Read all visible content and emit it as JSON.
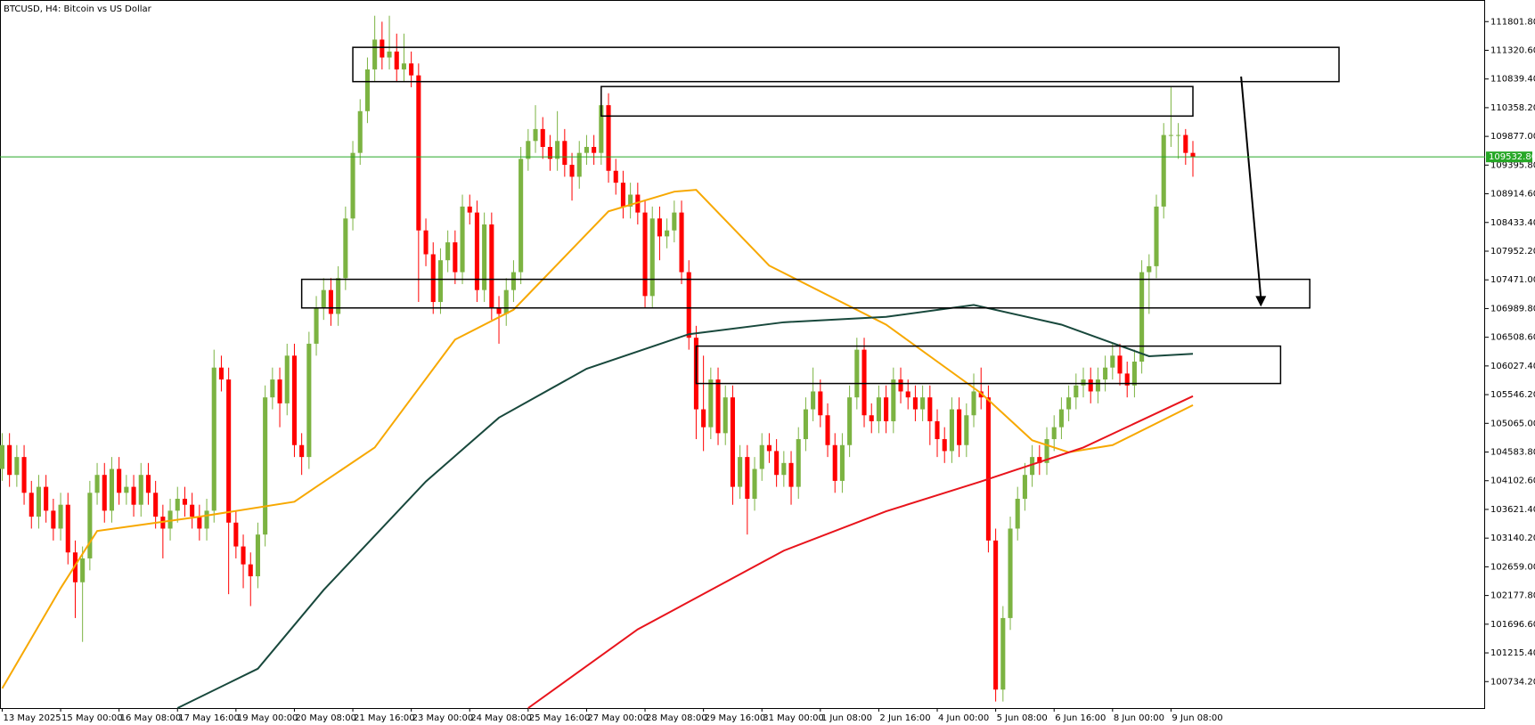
{
  "chart_data": {
    "type": "candlestick",
    "title": "BTCUSD, H4:  Bitcoin vs US Dollar",
    "up_color": "#7cb342",
    "down_color": "#ff0000",
    "xlim": [
      -0.3,
      203
    ],
    "ylim": [
      100290,
      112164
    ],
    "xticks": [
      {
        "value": 0,
        "label": "13 May 2025"
      },
      {
        "value": 8,
        "label": "15 May 00:00"
      },
      {
        "value": 16,
        "label": "16 May 08:00"
      },
      {
        "value": 24,
        "label": "17 May 16:00"
      },
      {
        "value": 32,
        "label": "19 May 00:00"
      },
      {
        "value": 40,
        "label": "20 May 08:00"
      },
      {
        "value": 48,
        "label": "21 May 16:00"
      },
      {
        "value": 56,
        "label": "23 May 00:00"
      },
      {
        "value": 64,
        "label": "24 May 08:00"
      },
      {
        "value": 72,
        "label": "25 May 16:00"
      },
      {
        "value": 80,
        "label": "27 May 00:00"
      },
      {
        "value": 88,
        "label": "28 May 08:00"
      },
      {
        "value": 96,
        "label": "29 May 16:00"
      },
      {
        "value": 104,
        "label": "31 May 00:00"
      },
      {
        "value": 112,
        "label": "1 Jun 08:00"
      },
      {
        "value": 120,
        "label": "2 Jun 16:00"
      },
      {
        "value": 128,
        "label": "4 Jun 00:00"
      },
      {
        "value": 136,
        "label": "5 Jun 08:00"
      },
      {
        "value": 144,
        "label": "6 Jun 16:00"
      },
      {
        "value": 152,
        "label": "8 Jun 00:00"
      },
      {
        "value": 160,
        "label": "9 Jun 08:00"
      }
    ],
    "yticks": [
      {
        "value": 111801.8,
        "label": "111801.80"
      },
      {
        "value": 111320.6,
        "label": "111320.60"
      },
      {
        "value": 110839.4,
        "label": "110839.40"
      },
      {
        "value": 110358.2,
        "label": "110358.20"
      },
      {
        "value": 109877,
        "label": "109877.00"
      },
      {
        "value": 109395.8,
        "label": "109395.80"
      },
      {
        "value": 108914.6,
        "label": "108914.60"
      },
      {
        "value": 108433.4,
        "label": "108433.40"
      },
      {
        "value": 107952.2,
        "label": "107952.20"
      },
      {
        "value": 107471,
        "label": "107471.00"
      },
      {
        "value": 106989.8,
        "label": "106989.80"
      },
      {
        "value": 106508.6,
        "label": "106508.60"
      },
      {
        "value": 106027.4,
        "label": "106027.40"
      },
      {
        "value": 105546.2,
        "label": "105546.20"
      },
      {
        "value": 105065,
        "label": "105065.00"
      },
      {
        "value": 104583.8,
        "label": "104583.80"
      },
      {
        "value": 104102.6,
        "label": "104102.60"
      },
      {
        "value": 103621.4,
        "label": "103621.40"
      },
      {
        "value": 103140.2,
        "label": "103140.20"
      },
      {
        "value": 102659,
        "label": "102659.00"
      },
      {
        "value": 102177.8,
        "label": "102177.80"
      },
      {
        "value": 101696.6,
        "label": "101696.60"
      },
      {
        "value": 101215.4,
        "label": "101215.40"
      },
      {
        "value": 100734.2,
        "label": "100734.20"
      }
    ],
    "price_line": {
      "value": 109532.8,
      "label": "109532.80",
      "color": "#26a826"
    },
    "open": [
      104300,
      104700,
      104200,
      104500,
      103900,
      103500,
      104000,
      103600,
      103300,
      103700,
      102900,
      102400,
      102800,
      103900,
      104200,
      103600,
      104300,
      103900,
      104000,
      103700,
      104200,
      103900,
      103500,
      103300,
      103600,
      103800,
      103700,
      103500,
      103300,
      103600,
      106000,
      105800,
      103400,
      103000,
      102700,
      102500,
      103200,
      105500,
      105800,
      105400,
      106200,
      104700,
      104500,
      106400,
      107000,
      107300,
      106900,
      107500,
      108500,
      109600,
      110300,
      111000,
      111500,
      111200,
      111300,
      111000,
      111100,
      110900,
      108300,
      107900,
      107100,
      107800,
      108100,
      107600,
      108700,
      108600,
      107300,
      108400,
      107000,
      106900,
      107300,
      107600,
      109500,
      109800,
      110000,
      109700,
      109500,
      109800,
      109400,
      109200,
      109600,
      109700,
      109600,
      110400,
      109300,
      109100,
      108700,
      108900,
      108600,
      107200,
      108500,
      108200,
      108300,
      108600,
      107600,
      106500,
      105300,
      105000,
      105800,
      104900,
      105500,
      104000,
      104500,
      103800,
      104300,
      104700,
      104600,
      104200,
      104400,
      104000,
      104800,
      105300,
      105600,
      105200,
      104700,
      104100,
      104700,
      105500,
      106300,
      105200,
      105100,
      105500,
      105100,
      105800,
      105600,
      105500,
      105300,
      105500,
      105100,
      104800,
      104600,
      105300,
      104700,
      105200,
      105600,
      105500,
      103100,
      100600,
      101800,
      103300,
      103800,
      104200,
      104500,
      104400,
      104800,
      105000,
      105300,
      105500,
      105700,
      105800,
      105600,
      105800,
      106000,
      106200,
      105900,
      105700,
      106100,
      107600,
      107700,
      108700,
      109900,
      109900,
      109900,
      109600
    ],
    "high": [
      104900,
      104900,
      104700,
      104700,
      104100,
      104200,
      104200,
      103800,
      103900,
      103900,
      103100,
      103000,
      104100,
      104400,
      104400,
      104500,
      104500,
      104200,
      104200,
      104400,
      104400,
      104100,
      103700,
      103800,
      104000,
      104000,
      103900,
      103700,
      103800,
      106300,
      106200,
      106000,
      103600,
      103200,
      102900,
      103400,
      105700,
      106000,
      106000,
      106400,
      106400,
      104900,
      106600,
      107200,
      107500,
      107500,
      107700,
      108700,
      109800,
      110500,
      111200,
      111900,
      111800,
      111900,
      111600,
      111600,
      111300,
      111100,
      108500,
      108100,
      108000,
      108300,
      108300,
      108900,
      108900,
      108800,
      108600,
      108600,
      107200,
      107500,
      107800,
      109700,
      110000,
      110400,
      110200,
      109900,
      110300,
      110000,
      109600,
      109800,
      109900,
      109900,
      110600,
      110600,
      109500,
      109300,
      109100,
      109100,
      108800,
      108700,
      108700,
      108500,
      108800,
      108800,
      107800,
      106700,
      106200,
      106000,
      106000,
      105700,
      105700,
      104700,
      104700,
      104500,
      104900,
      104900,
      104800,
      104600,
      104600,
      105000,
      105500,
      106000,
      105800,
      105400,
      104900,
      104900,
      105700,
      106500,
      106500,
      105400,
      105700,
      105700,
      106000,
      106000,
      105800,
      105700,
      105700,
      105700,
      105300,
      105000,
      105500,
      105500,
      105400,
      105900,
      106000,
      105700,
      103300,
      102000,
      103500,
      104000,
      104400,
      104700,
      104700,
      105000,
      105200,
      105500,
      105700,
      105900,
      106000,
      106000,
      106000,
      106200,
      106400,
      106400,
      106100,
      106300,
      107800,
      107900,
      108900,
      110100,
      110700,
      110100,
      110000,
      109800
    ],
    "low": [
      104100,
      104000,
      104000,
      103700,
      103300,
      103300,
      103400,
      103100,
      103100,
      102700,
      101800,
      101400,
      102600,
      103700,
      103400,
      103400,
      103700,
      103700,
      103500,
      103500,
      103700,
      103300,
      102800,
      103100,
      103400,
      103500,
      103300,
      103100,
      103100,
      103400,
      105600,
      102200,
      102800,
      102300,
      102000,
      102300,
      103000,
      105300,
      105000,
      105200,
      104500,
      104200,
      104300,
      106200,
      106800,
      106700,
      106700,
      107300,
      108300,
      109400,
      110100,
      110800,
      111000,
      111000,
      110800,
      110800,
      110700,
      107100,
      107700,
      106900,
      106900,
      107600,
      107400,
      107400,
      108400,
      107100,
      107100,
      106800,
      106400,
      106700,
      107100,
      107400,
      109300,
      109600,
      109500,
      109300,
      109300,
      109200,
      108800,
      109000,
      109400,
      109400,
      109400,
      109100,
      108900,
      108500,
      108500,
      108400,
      107000,
      107000,
      107800,
      108000,
      108100,
      107400,
      106300,
      104800,
      104600,
      104800,
      104700,
      104700,
      103700,
      103800,
      103200,
      103600,
      104100,
      104400,
      104000,
      104000,
      103700,
      103800,
      104600,
      105100,
      105000,
      104500,
      103900,
      103900,
      104500,
      105300,
      105000,
      104900,
      104900,
      104900,
      104900,
      105400,
      105300,
      105100,
      105100,
      104700,
      104500,
      104400,
      104400,
      104500,
      104500,
      105000,
      105300,
      102900,
      100400,
      100400,
      101600,
      103100,
      103600,
      104000,
      104200,
      104200,
      104600,
      104800,
      105100,
      105300,
      105500,
      105400,
      105400,
      105600,
      105800,
      105700,
      105500,
      105500,
      105900,
      106900,
      107500,
      108500,
      109700,
      109500,
      109400,
      109200
    ],
    "close": [
      104700,
      104200,
      104500,
      103900,
      103500,
      104000,
      103600,
      103300,
      103700,
      102900,
      102400,
      102800,
      103900,
      104200,
      103600,
      104300,
      103900,
      104000,
      103700,
      104200,
      103900,
      103500,
      103300,
      103600,
      103800,
      103700,
      103500,
      103300,
      103600,
      106000,
      105800,
      103400,
      103000,
      102700,
      102500,
      103200,
      105500,
      105800,
      105400,
      106200,
      104700,
      104500,
      106400,
      107000,
      107300,
      106900,
      107500,
      108500,
      109600,
      110300,
      111000,
      111500,
      111200,
      111300,
      111000,
      111100,
      110900,
      108300,
      107900,
      107100,
      107800,
      108100,
      107600,
      108700,
      108600,
      107300,
      108400,
      107000,
      106900,
      107300,
      107600,
      109500,
      109800,
      110000,
      109700,
      109500,
      109800,
      109400,
      109200,
      109600,
      109700,
      109600,
      110400,
      109300,
      109100,
      108700,
      108900,
      108600,
      107200,
      108500,
      108200,
      108300,
      108600,
      107600,
      106500,
      105300,
      105000,
      105800,
      104900,
      105500,
      104000,
      104500,
      103800,
      104300,
      104700,
      104600,
      104200,
      104400,
      104000,
      104800,
      105300,
      105600,
      105200,
      104700,
      104100,
      104700,
      105500,
      106300,
      105200,
      105100,
      105500,
      105100,
      105800,
      105600,
      105500,
      105300,
      105500,
      105100,
      104800,
      104600,
      105300,
      104700,
      105200,
      105600,
      105500,
      103100,
      100600,
      101800,
      103300,
      103800,
      104200,
      104500,
      104400,
      104800,
      105000,
      105300,
      105500,
      105700,
      105800,
      105600,
      105800,
      106000,
      106200,
      105900,
      105700,
      106100,
      107600,
      107700,
      108700,
      109900,
      109900,
      109900,
      109600,
      109530
    ],
    "lines": [
      {
        "color": "#f7a800",
        "x": [
          0,
          8,
          13,
          27,
          40,
          43,
          51,
          62,
          70,
          83,
          92,
          95,
          105,
          121,
          134,
          141,
          146,
          152,
          163
        ],
        "values": [
          100620,
          102300,
          103260,
          103500,
          103750,
          104000,
          104660,
          106470,
          106970,
          108620,
          108950,
          108980,
          107710,
          106720,
          105570,
          104780,
          104580,
          104700,
          105370
        ]
      },
      {
        "color": "#18483c",
        "x": [
          24,
          35,
          44,
          58,
          68,
          80,
          94,
          107,
          121,
          133,
          145,
          157,
          163
        ],
        "values": [
          100290,
          100950,
          102270,
          104090,
          105160,
          105980,
          106560,
          106760,
          106850,
          107050,
          106720,
          106190,
          106230
        ]
      },
      {
        "color": "#e8141c",
        "x": [
          72,
          87,
          107,
          121,
          134,
          148,
          163
        ],
        "values": [
          100290,
          101610,
          102930,
          103590,
          104090,
          104660,
          105520
        ]
      }
    ],
    "zones": [
      {
        "x": [
          48,
          183
        ],
        "y": [
          110795,
          111370
        ]
      },
      {
        "x": [
          82,
          163
        ],
        "y": [
          110218,
          110713
        ]
      },
      {
        "x": [
          41,
          179
        ],
        "y": [
          107000,
          107480
        ]
      },
      {
        "x": [
          95,
          175
        ],
        "y": [
          105733,
          106360
        ]
      }
    ],
    "arrow": {
      "x": [
        169.6,
        172.3
      ],
      "y": [
        110880,
        107020
      ]
    }
  }
}
